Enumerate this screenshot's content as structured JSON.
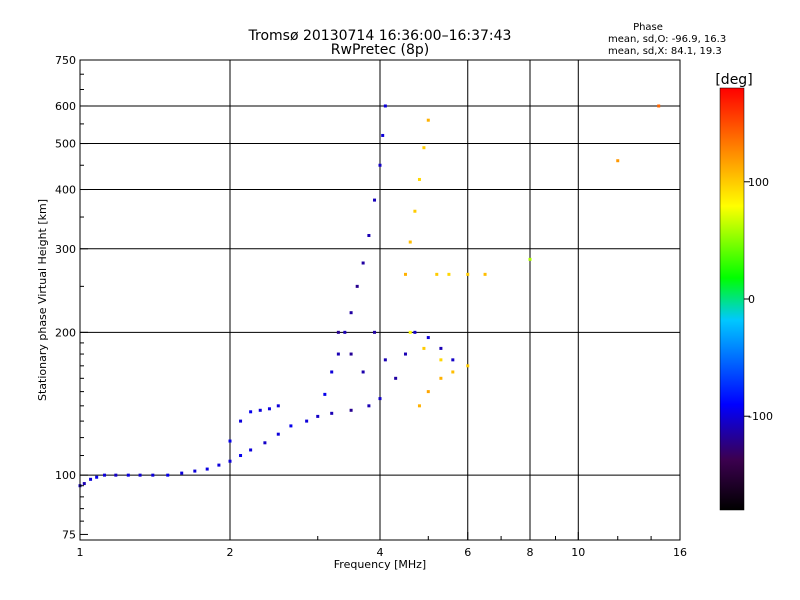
{
  "chart_data": {
    "type": "scatter",
    "title": "Tromsø 20130714 16:36:00–16:37:43",
    "subtitle": "RwPretec (8p)",
    "phase_info": {
      "heading": "Phase",
      "line_o": "mean, sd,O: -96.9, 16.3",
      "line_x": "mean, sd,X:  84.1, 19.3"
    },
    "xlabel": "Frequency [MHz]",
    "ylabel": "Stationary phase Virtual Height [km]",
    "xscale": "log",
    "yscale": "log",
    "xlim": [
      1,
      16
    ],
    "ylim": [
      73,
      750
    ],
    "xticks": [
      {
        "value": 1,
        "label": "1"
      },
      {
        "value": 2,
        "label": "2"
      },
      {
        "value": 4,
        "label": "4"
      },
      {
        "value": 6,
        "label": "6"
      },
      {
        "value": 8,
        "label": "8"
      },
      {
        "value": 10,
        "label": "10"
      },
      {
        "value": 16,
        "label": "16"
      }
    ],
    "yticks": [
      {
        "value": 75,
        "label": "75"
      },
      {
        "value": 100,
        "label": "100"
      },
      {
        "value": 200,
        "label": "200"
      },
      {
        "value": 300,
        "label": "300"
      },
      {
        "value": 400,
        "label": "400"
      },
      {
        "value": 500,
        "label": "500"
      },
      {
        "value": 600,
        "label": "600"
      },
      {
        "value": 750,
        "label": "750"
      }
    ],
    "grid_x": [
      2,
      4,
      6,
      8,
      10
    ],
    "grid_y": [
      100,
      200,
      300,
      400,
      500,
      600
    ],
    "grid": true,
    "colorbar": {
      "label": "[deg]",
      "range": [
        -180,
        180
      ],
      "ticks": [
        {
          "value": 100,
          "label": "100"
        },
        {
          "value": 0,
          "label": "0"
        },
        {
          "value": -100,
          "label": "-100"
        }
      ],
      "colors": [
        "#000000",
        "#3c0050",
        "#0000ff",
        "#00c8ff",
        "#00ff00",
        "#ffff00",
        "#ff8000",
        "#ff0000"
      ]
    },
    "series": [
      {
        "points": [
          [
            1.0,
            95,
            -105
          ],
          [
            1.02,
            96,
            -110
          ],
          [
            1.05,
            98,
            -100
          ],
          [
            1.08,
            99,
            -95
          ],
          [
            1.12,
            100,
            -100
          ],
          [
            1.18,
            100,
            -105
          ],
          [
            1.25,
            100,
            -98
          ],
          [
            1.32,
            100,
            -102
          ],
          [
            1.4,
            100,
            -100
          ],
          [
            1.5,
            100,
            -95
          ],
          [
            1.6,
            101,
            -100
          ],
          [
            1.7,
            102,
            -100
          ],
          [
            1.8,
            103,
            -98
          ],
          [
            1.9,
            105,
            -100
          ],
          [
            2.0,
            107,
            -100
          ],
          [
            2.1,
            110,
            -95
          ],
          [
            2.2,
            113,
            -100
          ],
          [
            2.35,
            117,
            -105
          ],
          [
            2.5,
            122,
            -100
          ],
          [
            2.65,
            127,
            -95
          ],
          [
            2.85,
            130,
            -100
          ],
          [
            3.0,
            133,
            -105
          ],
          [
            3.2,
            135,
            -110
          ],
          [
            3.5,
            137,
            -120
          ],
          [
            3.8,
            140,
            -110
          ],
          [
            4.0,
            145,
            -105
          ],
          [
            2.0,
            118,
            -95
          ],
          [
            2.1,
            130,
            -100
          ],
          [
            2.2,
            136,
            -95
          ],
          [
            2.3,
            137,
            -100
          ],
          [
            2.4,
            138,
            -98
          ],
          [
            2.5,
            140,
            -100
          ],
          [
            3.1,
            148,
            -95
          ],
          [
            3.2,
            165,
            -100
          ],
          [
            3.3,
            180,
            -110
          ],
          [
            3.4,
            200,
            -110
          ],
          [
            3.5,
            220,
            -115
          ],
          [
            3.6,
            250,
            -120
          ],
          [
            3.7,
            280,
            -115
          ],
          [
            3.8,
            320,
            -110
          ],
          [
            3.9,
            380,
            -108
          ],
          [
            4.0,
            450,
            -105
          ],
          [
            4.05,
            520,
            -100
          ],
          [
            4.1,
            600,
            -100
          ],
          [
            3.3,
            200,
            -120
          ],
          [
            3.5,
            180,
            -118
          ],
          [
            3.7,
            165,
            -112
          ],
          [
            3.9,
            200,
            -115
          ],
          [
            4.1,
            175,
            -110
          ],
          [
            4.3,
            160,
            -115
          ],
          [
            4.5,
            180,
            -110
          ],
          [
            4.7,
            200,
            -105
          ],
          [
            5.0,
            195,
            -100
          ],
          [
            5.3,
            185,
            -110
          ],
          [
            5.6,
            175,
            -105
          ],
          [
            4.5,
            265,
            110
          ],
          [
            4.6,
            310,
            105
          ],
          [
            4.7,
            360,
            100
          ],
          [
            4.8,
            420,
            95
          ],
          [
            4.9,
            490,
            100
          ],
          [
            5.0,
            560,
            110
          ],
          [
            4.8,
            140,
            110
          ],
          [
            5.0,
            150,
            115
          ],
          [
            5.3,
            160,
            110
          ],
          [
            5.6,
            165,
            105
          ],
          [
            6.0,
            170,
            100
          ],
          [
            5.2,
            265,
            100
          ],
          [
            5.5,
            265,
            95
          ],
          [
            6.0,
            265,
            100
          ],
          [
            6.5,
            265,
            105
          ],
          [
            4.6,
            200,
            80
          ],
          [
            4.9,
            185,
            100
          ],
          [
            5.3,
            175,
            95
          ],
          [
            8.0,
            285,
            60
          ],
          [
            12.0,
            460,
            120
          ],
          [
            14.5,
            600,
            140
          ]
        ]
      }
    ]
  }
}
